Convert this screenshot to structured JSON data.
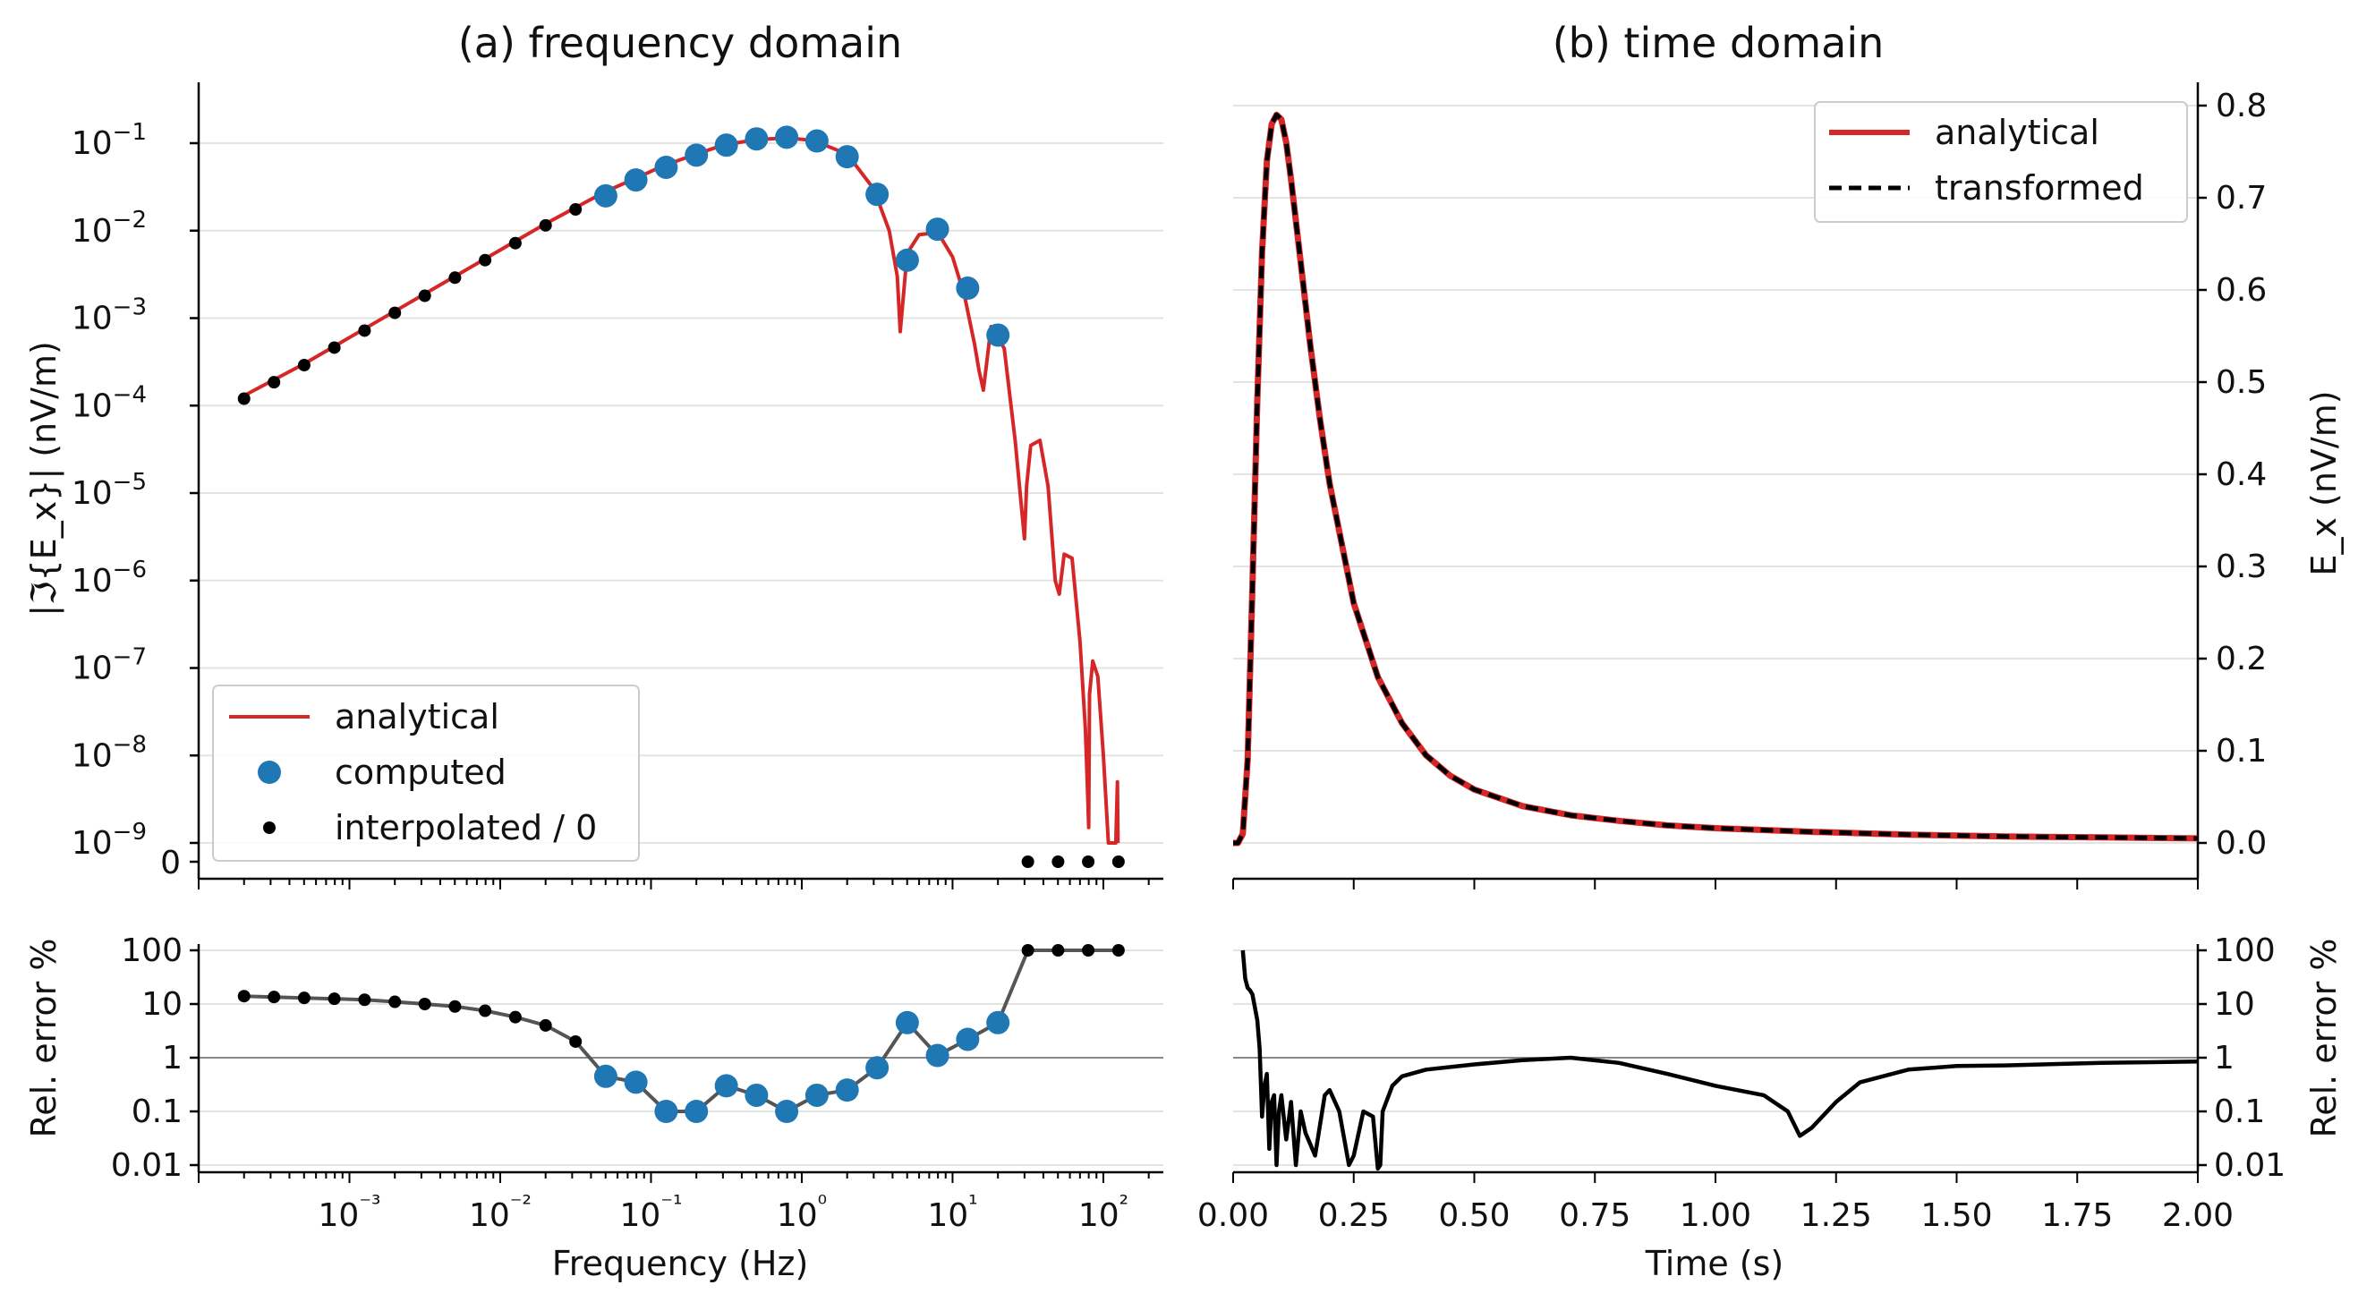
{
  "colors": {
    "analytical": "#d62728",
    "computed": "#1f77b4",
    "interpolated": "#000000",
    "transformed": "#000000",
    "error_line": "#555555",
    "grid": "#e3e3e3"
  },
  "chart_data": [
    {
      "panel": "a-main",
      "type": "line",
      "title": "(a) frequency domain",
      "ylabel": "|ℑ{E_x}| (nV/m)",
      "xscale": "log",
      "yscale": "symlog",
      "xlim": [
        0.0001,
        250
      ],
      "ytick_labels": [
        "10⁻¹",
        "10⁻²",
        "10⁻³",
        "10⁻⁴",
        "10⁻⁵",
        "10⁻⁶",
        "10⁻⁷",
        "10⁻⁸",
        "10⁻⁹",
        "0"
      ],
      "grid": "horizontal",
      "legend": {
        "position": "lower-left",
        "entries": [
          "analytical",
          "computed",
          "interpolated / 0"
        ]
      },
      "series": [
        {
          "name": "analytical",
          "style": "line",
          "x": [
            0.0002,
            0.0005,
            0.001,
            0.002,
            0.005,
            0.01,
            0.02,
            0.03,
            0.05,
            0.08,
            0.12,
            0.2,
            0.3,
            0.5,
            0.8,
            1.2,
            2,
            3,
            3.8,
            4.3,
            4.5,
            5,
            6,
            8,
            10,
            12,
            14,
            15,
            16,
            18,
            22,
            26,
            30,
            31,
            33,
            38,
            43,
            48,
            51,
            55,
            62,
            70,
            76,
            79,
            80,
            81,
            85,
            92,
            100,
            108,
            115,
            120,
            121,
            124,
            125
          ],
          "y": [
            0.00013,
            0.0003,
            0.0006,
            0.0012,
            0.003,
            0.006,
            0.012,
            0.0175,
            0.028,
            0.04,
            0.055,
            0.075,
            0.095,
            0.11,
            0.115,
            0.107,
            0.075,
            0.03,
            0.01,
            0.003,
            0.0007,
            0.0055,
            0.009,
            0.0095,
            0.005,
            0.0018,
            0.0005,
            0.00025,
            0.00015,
            0.0008,
            0.00045,
            4e-05,
            3e-06,
            1.2e-05,
            3.5e-05,
            4e-05,
            1.2e-05,
            1e-06,
            7e-07,
            2e-06,
            1.8e-06,
            2e-07,
            2e-08,
            3e-09,
            1.5e-09,
            5e-08,
            1.2e-07,
            8e-08,
            1e-08,
            1e-09,
            1e-09,
            1e-09,
            1e-09,
            5e-09,
            1e-09
          ]
        },
        {
          "name": "computed",
          "style": "marker",
          "x": [
            0.0501,
            0.0794,
            0.126,
            0.2,
            0.316,
            0.501,
            0.794,
            1.26,
            2.0,
            3.16,
            5.01,
            7.94,
            12.6,
            20.0
          ],
          "y": [
            0.025,
            0.038,
            0.053,
            0.073,
            0.095,
            0.112,
            0.117,
            0.106,
            0.07,
            0.026,
            0.0046,
            0.0104,
            0.0022,
            0.00064
          ]
        },
        {
          "name": "interpolated / 0",
          "style": "marker",
          "x": [
            0.0002,
            0.000316,
            0.000501,
            0.000794,
            0.00126,
            0.002,
            0.00316,
            0.00501,
            0.00794,
            0.0126,
            0.02,
            0.0316,
            31.6,
            50.1,
            79.4,
            126
          ],
          "y": [
            0.00012,
            0.000185,
            0.00029,
            0.00046,
            0.00072,
            0.00115,
            0.0018,
            0.0029,
            0.0046,
            0.0072,
            0.0115,
            0.0175,
            0,
            0,
            0,
            0
          ]
        }
      ]
    },
    {
      "panel": "a-error",
      "type": "line",
      "xlabel": "Frequency (Hz)",
      "ylabel": "Rel. error %",
      "xscale": "log",
      "yscale": "log",
      "ytick_labels": [
        "100",
        "10",
        "1",
        "0.1",
        "0.01"
      ],
      "xtick_labels": [
        "10⁻³",
        "10⁻²",
        "10⁻¹",
        "10⁰",
        "10¹",
        "10²"
      ],
      "hline": 1,
      "series": [
        {
          "name": "relative error",
          "x": [
            0.0002,
            0.000316,
            0.000501,
            0.000794,
            0.00126,
            0.002,
            0.00316,
            0.00501,
            0.00794,
            0.0126,
            0.02,
            0.0316,
            0.0501,
            0.0794,
            0.126,
            0.2,
            0.316,
            0.501,
            0.794,
            1.26,
            2.0,
            3.16,
            5.01,
            7.94,
            12.6,
            20.0,
            31.6,
            50.1,
            79.4,
            126
          ],
          "y": [
            14,
            13.5,
            13,
            12.5,
            12,
            11,
            10,
            9,
            7.5,
            5.7,
            4,
            2,
            0.45,
            0.35,
            0.1,
            0.1,
            0.3,
            0.2,
            0.1,
            0.2,
            0.25,
            0.65,
            4.5,
            1.1,
            2.2,
            4.5,
            100,
            100,
            100,
            100
          ],
          "markers": [
            "i",
            "i",
            "i",
            "i",
            "i",
            "i",
            "i",
            "i",
            "i",
            "i",
            "i",
            "i",
            "c",
            "c",
            "c",
            "c",
            "c",
            "c",
            "c",
            "c",
            "c",
            "c",
            "c",
            "c",
            "c",
            "c",
            "i",
            "i",
            "i",
            "i"
          ]
        }
      ]
    },
    {
      "panel": "b-main",
      "type": "line",
      "title": "(b) time domain",
      "ylabel": "E_x (nV/m)",
      "xlim": [
        0,
        2
      ],
      "ylim": [
        -0.04,
        0.82
      ],
      "yticks": [
        0.0,
        0.1,
        0.2,
        0.3,
        0.4,
        0.5,
        0.6,
        0.7,
        0.8
      ],
      "ytick_labels": [
        "0.0",
        "0.1",
        "0.2",
        "0.3",
        "0.4",
        "0.5",
        "0.6",
        "0.7",
        "0.8"
      ],
      "grid": "horizontal",
      "legend": {
        "position": "top-right",
        "entries": [
          "analytical",
          "transformed"
        ]
      },
      "series": [
        {
          "name": "analytical",
          "x": [
            0.0,
            0.01,
            0.02,
            0.03,
            0.04,
            0.05,
            0.06,
            0.07,
            0.08,
            0.09,
            0.1,
            0.11,
            0.12,
            0.14,
            0.16,
            0.18,
            0.2,
            0.25,
            0.3,
            0.35,
            0.4,
            0.45,
            0.5,
            0.6,
            0.7,
            0.8,
            0.9,
            1.0,
            1.2,
            1.4,
            1.6,
            1.8,
            2.0
          ],
          "y": [
            0.0,
            0.0,
            0.01,
            0.09,
            0.28,
            0.48,
            0.64,
            0.74,
            0.78,
            0.79,
            0.785,
            0.76,
            0.72,
            0.63,
            0.54,
            0.46,
            0.39,
            0.26,
            0.18,
            0.13,
            0.095,
            0.073,
            0.058,
            0.04,
            0.03,
            0.024,
            0.019,
            0.016,
            0.012,
            0.009,
            0.007,
            0.006,
            0.005
          ]
        },
        {
          "name": "transformed",
          "x": [
            0.0,
            0.01,
            0.02,
            0.03,
            0.04,
            0.05,
            0.06,
            0.07,
            0.08,
            0.09,
            0.1,
            0.11,
            0.12,
            0.14,
            0.16,
            0.18,
            0.2,
            0.25,
            0.3,
            0.35,
            0.4,
            0.45,
            0.5,
            0.6,
            0.7,
            0.8,
            0.9,
            1.0,
            1.2,
            1.4,
            1.6,
            1.8,
            2.0
          ],
          "y": [
            0.0,
            0.0,
            0.01,
            0.09,
            0.28,
            0.48,
            0.64,
            0.74,
            0.78,
            0.79,
            0.785,
            0.76,
            0.72,
            0.63,
            0.54,
            0.46,
            0.39,
            0.26,
            0.18,
            0.13,
            0.095,
            0.073,
            0.058,
            0.04,
            0.03,
            0.024,
            0.019,
            0.016,
            0.012,
            0.009,
            0.007,
            0.006,
            0.005
          ]
        }
      ]
    },
    {
      "panel": "b-error",
      "type": "line",
      "xlabel": "Time (s)",
      "ylabel": "Rel. error %",
      "yscale": "log",
      "xlim": [
        0,
        2
      ],
      "xticks": [
        0.0,
        0.25,
        0.5,
        0.75,
        1.0,
        1.25,
        1.5,
        1.75,
        2.0
      ],
      "xtick_labels": [
        "0.00",
        "0.25",
        "0.50",
        "0.75",
        "1.00",
        "1.25",
        "1.50",
        "1.75",
        "2.00"
      ],
      "ytick_labels": [
        "100",
        "10",
        "1",
        "0.1",
        "0.01"
      ],
      "hline": 1,
      "series": [
        {
          "name": "relative error",
          "x": [
            0.02,
            0.025,
            0.03,
            0.035,
            0.04,
            0.05,
            0.055,
            0.06,
            0.065,
            0.07,
            0.075,
            0.08,
            0.085,
            0.09,
            0.095,
            0.1,
            0.11,
            0.12,
            0.13,
            0.14,
            0.15,
            0.17,
            0.19,
            0.2,
            0.22,
            0.24,
            0.25,
            0.27,
            0.29,
            0.3,
            0.305,
            0.31,
            0.33,
            0.35,
            0.4,
            0.5,
            0.6,
            0.7,
            0.8,
            0.9,
            1.0,
            1.1,
            1.15,
            1.175,
            1.2,
            1.25,
            1.3,
            1.4,
            1.5,
            1.6,
            1.8,
            2.0
          ],
          "y": [
            100,
            30,
            20,
            18,
            15,
            5,
            1.5,
            0.08,
            0.3,
            0.5,
            0.02,
            0.15,
            0.2,
            0.01,
            0.1,
            0.2,
            0.03,
            0.15,
            0.01,
            0.1,
            0.04,
            0.015,
            0.2,
            0.25,
            0.1,
            0.01,
            0.015,
            0.1,
            0.08,
            0.002,
            0.01,
            0.1,
            0.3,
            0.45,
            0.6,
            0.75,
            0.9,
            1.0,
            0.8,
            0.5,
            0.3,
            0.2,
            0.1,
            0.035,
            0.05,
            0.15,
            0.35,
            0.6,
            0.7,
            0.72,
            0.8,
            0.85
          ]
        }
      ]
    }
  ]
}
